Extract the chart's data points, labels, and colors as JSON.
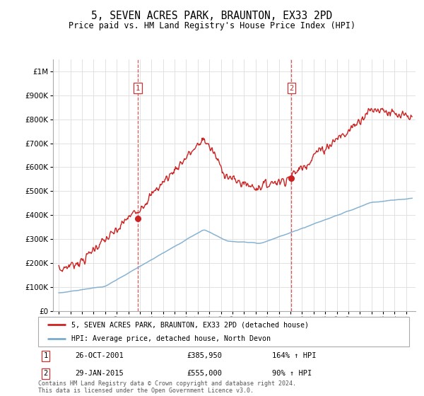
{
  "title": "5, SEVEN ACRES PARK, BRAUNTON, EX33 2PD",
  "subtitle": "Price paid vs. HM Land Registry's House Price Index (HPI)",
  "legend_line1": "5, SEVEN ACRES PARK, BRAUNTON, EX33 2PD (detached house)",
  "legend_line2": "HPI: Average price, detached house, North Devon",
  "annotation1_label": "1",
  "annotation1_date": "26-OCT-2001",
  "annotation1_price": "£385,950",
  "annotation1_hpi": "164% ↑ HPI",
  "annotation2_label": "2",
  "annotation2_date": "29-JAN-2015",
  "annotation2_price": "£555,000",
  "annotation2_hpi": "90% ↑ HPI",
  "footer": "Contains HM Land Registry data © Crown copyright and database right 2024.\nThis data is licensed under the Open Government Licence v3.0.",
  "hpi_color": "#7aabcf",
  "price_color": "#cc2222",
  "vline_color": "#cc3333",
  "marker1_x": 2001.83,
  "marker1_y": 385950,
  "marker2_x": 2015.08,
  "marker2_y": 555000,
  "ylim_max": 1050000,
  "xlim_min": 1994.5,
  "xlim_max": 2025.8,
  "yticks": [
    0,
    100000,
    200000,
    300000,
    400000,
    500000,
    600000,
    700000,
    800000,
    900000,
    1000000
  ]
}
